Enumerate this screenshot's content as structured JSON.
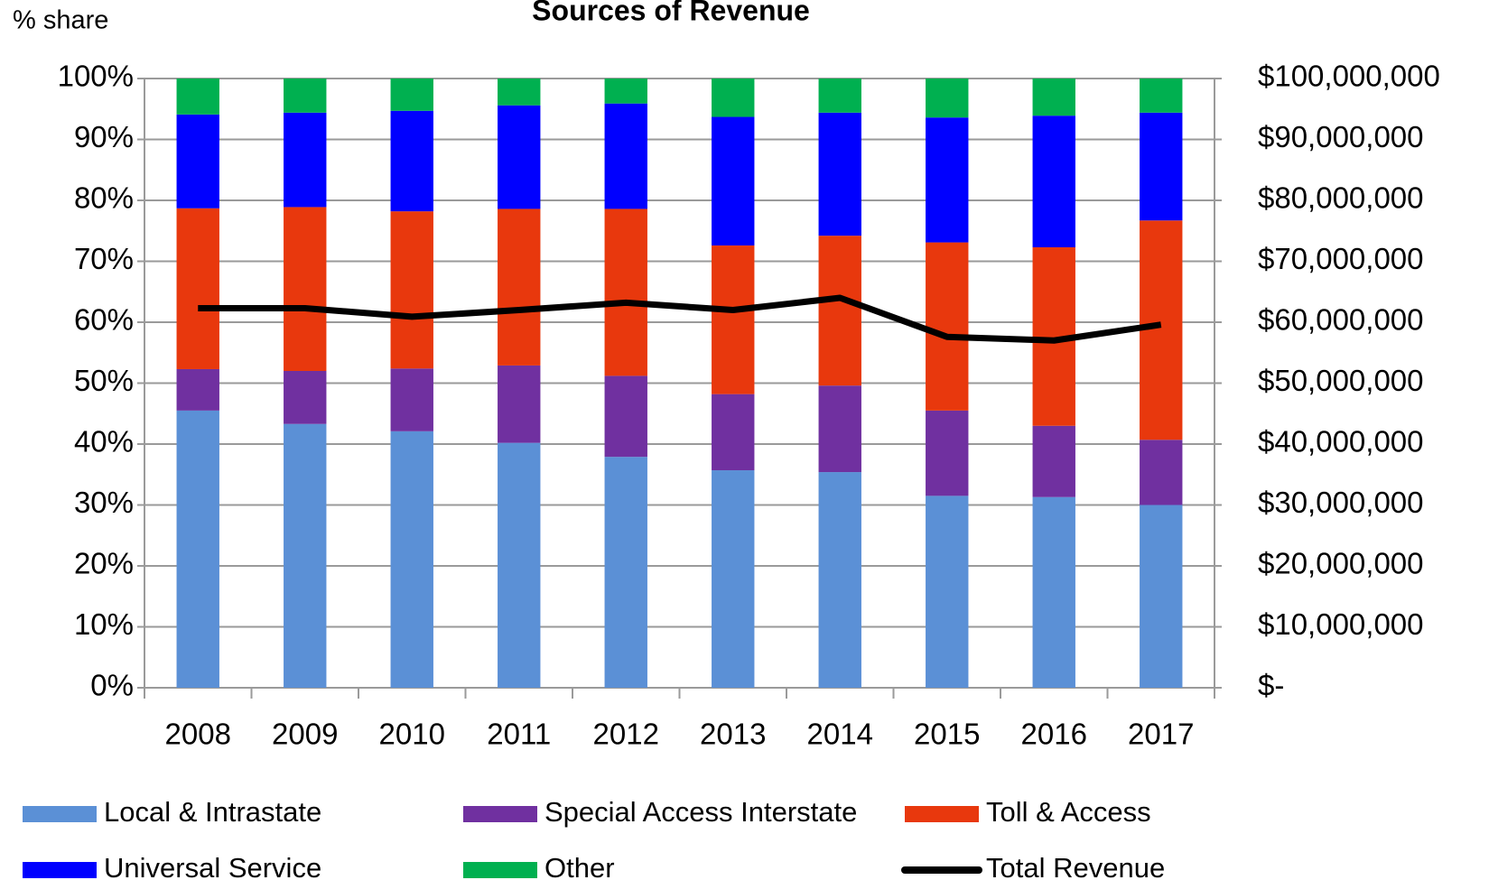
{
  "chart_data": {
    "type": "bar",
    "stacked": true,
    "title": "Sources of Revenue",
    "y_label": "% share",
    "categories": [
      "2008",
      "2009",
      "2010",
      "2011",
      "2012",
      "2013",
      "2014",
      "2015",
      "2016",
      "2017"
    ],
    "series": [
      {
        "name": "Local & Intrastate",
        "color": "#5b90d6",
        "values": [
          45.5,
          43.3,
          42.1,
          40.2,
          37.9,
          35.7,
          35.4,
          31.5,
          31.3,
          30.0
        ]
      },
      {
        "name": "Special Access Interstate",
        "color": "#7030a0",
        "values": [
          6.8,
          8.7,
          10.3,
          12.7,
          13.3,
          12.5,
          14.2,
          14.0,
          11.7,
          10.7
        ]
      },
      {
        "name": "Toll & Access",
        "color": "#e8380d",
        "values": [
          26.4,
          26.9,
          25.8,
          25.7,
          27.4,
          24.4,
          24.6,
          27.6,
          29.3,
          36.0
        ]
      },
      {
        "name": "Universal Service",
        "color": "#0000ff",
        "values": [
          15.4,
          15.5,
          16.5,
          17.0,
          17.3,
          21.1,
          20.2,
          20.5,
          21.6,
          17.7
        ]
      },
      {
        "name": "Other",
        "color": "#00b050",
        "values": [
          5.9,
          5.6,
          5.3,
          4.4,
          4.1,
          6.3,
          5.6,
          6.4,
          6.1,
          5.6
        ]
      },
      {
        "name": "Total Revenue",
        "color": "#000000",
        "type": "line",
        "axis": "y2",
        "values": [
          62300000,
          62300000,
          60900000,
          62000000,
          63200000,
          62000000,
          64000000,
          57600000,
          57000000,
          59600000
        ]
      }
    ],
    "ylim": [
      0,
      100
    ],
    "yticks": [
      {
        "value": 0,
        "label": "0%"
      },
      {
        "value": 10,
        "label": "10%"
      },
      {
        "value": 20,
        "label": "20%"
      },
      {
        "value": 30,
        "label": "30%"
      },
      {
        "value": 40,
        "label": "40%"
      },
      {
        "value": 50,
        "label": "50%"
      },
      {
        "value": 60,
        "label": "60%"
      },
      {
        "value": 70,
        "label": "70%"
      },
      {
        "value": 80,
        "label": "80%"
      },
      {
        "value": 90,
        "label": "90%"
      },
      {
        "value": 100,
        "label": "100%"
      }
    ],
    "y2lim": [
      0,
      100000000
    ],
    "y2ticks": [
      {
        "value": 0,
        "label": "$-"
      },
      {
        "value": 10000000,
        "label": "$10,000,000"
      },
      {
        "value": 20000000,
        "label": "$20,000,000"
      },
      {
        "value": 30000000,
        "label": "$30,000,000"
      },
      {
        "value": 40000000,
        "label": "$40,000,000"
      },
      {
        "value": 50000000,
        "label": "$50,000,000"
      },
      {
        "value": 60000000,
        "label": "$60,000,000"
      },
      {
        "value": 70000000,
        "label": "$70,000,000"
      },
      {
        "value": 80000000,
        "label": "$80,000,000"
      },
      {
        "value": 90000000,
        "label": "$90,000,000"
      },
      {
        "value": 100000000,
        "label": "$100,000,000"
      }
    ],
    "grid": true,
    "legend": "bottom"
  }
}
